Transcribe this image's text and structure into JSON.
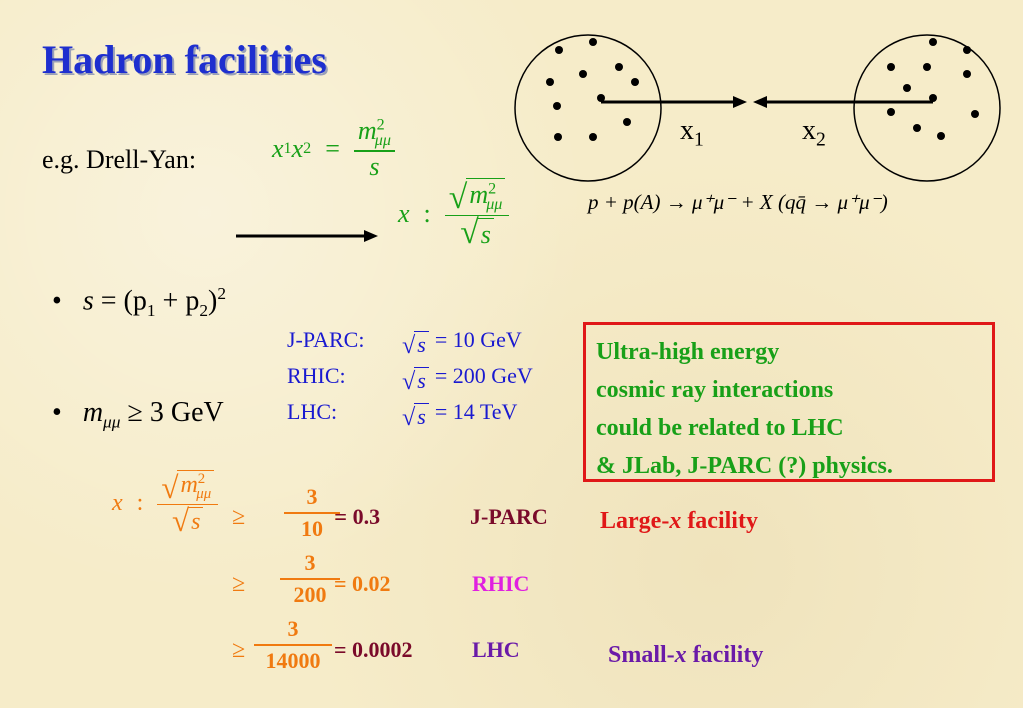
{
  "title": "Hadron facilities",
  "drell_yan": {
    "label": "e.g.  Drell-Yan:",
    "eq_lhs": "x",
    "eq_lhs_sub1": "1",
    "eq_lhs2": "x",
    "eq_lhs_sub2": "2",
    "equals": "=",
    "num_m": "m",
    "num_sup": "2",
    "num_sub": "μμ",
    "den": "s",
    "x_label": "x",
    "colon": ":",
    "sqrt_m": "m",
    "sqrt_sup": "2",
    "sqrt_sub": "μμ",
    "sqrt_s": "s"
  },
  "diagram": {
    "x1_label": "x",
    "x1_sub": "1",
    "x2_label": "x",
    "x2_sub": "2"
  },
  "reaction": {
    "text": "p + p(A) → μ⁺μ⁻ + X     (qq̄ → μ⁺μ⁻)"
  },
  "bullets": {
    "b1_s": "s",
    "b1_eq": "= (p",
    "b1_sub1": "1",
    "b1_plus": " + p",
    "b1_sub2": "2",
    "b1_close": ")",
    "b1_sup": "2",
    "b2_m": "m",
    "b2_sub": "μμ",
    "b2_rest": "≥ 3 GeV",
    "bullet_char": "•"
  },
  "energies": [
    {
      "name": "J-PARC:",
      "s": "s",
      "value": "= 10 GeV"
    },
    {
      "name": "RHIC:",
      "s": "s",
      "value": "= 200 GeV"
    },
    {
      "name": "LHC:",
      "s": "s",
      "value": "= 14 TeV"
    }
  ],
  "box": {
    "lines": [
      "Ultra-high energy",
      "cosmic ray interactions",
      "could be related to LHC",
      "& JLab, J-PARC (?) physics."
    ]
  },
  "xcalc": {
    "x_label": "x",
    "colon": ":",
    "m": "m",
    "m_sup": "2",
    "m_sub": "μμ",
    "s": "s",
    "geq": "≥",
    "rows": [
      {
        "num": "3",
        "den": "10",
        "result": "= 0.3",
        "facility": "J-PARC"
      },
      {
        "num": "3",
        "den": "200",
        "result": "= 0.02",
        "facility": "RHIC"
      },
      {
        "num": "3",
        "den": "14000",
        "result": "= 0.0002",
        "facility": "LHC"
      }
    ]
  },
  "large_x": {
    "prefix": "Large-",
    "x": "x",
    "suffix": " facility"
  },
  "small_x": {
    "prefix": "Small-",
    "x": "x",
    "suffix": " facility"
  },
  "colors": {
    "title": "#1e2fcf",
    "green": "#18a018",
    "orange": "#f07a10",
    "blue": "#1a1ad0",
    "red": "#e01818",
    "maroon": "#7a0a2a",
    "magenta": "#e020e0",
    "purple": "#6a1aa8"
  }
}
